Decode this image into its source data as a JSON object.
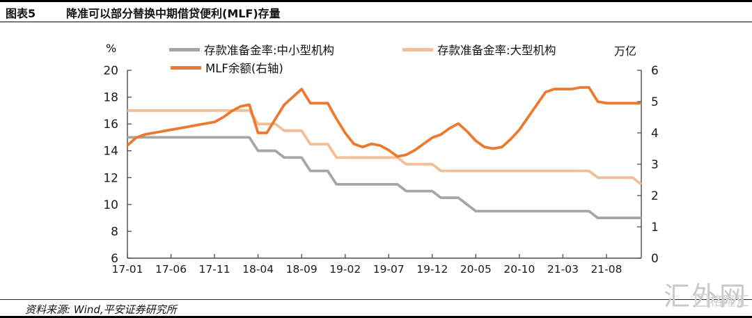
{
  "header": {
    "label": "图表5",
    "title": "降准可以部分替换中期借贷便利(MLF)存量"
  },
  "footer": {
    "source": "资料来源: Wind,平安证券研究所"
  },
  "watermark": {
    "main": "汇外网",
    "sub": "格隆汇"
  },
  "chart_data": {
    "type": "line",
    "x_frequency": "monthly",
    "x_start": "2017-01",
    "x_end": "2021-12",
    "n_points": 60,
    "grid": false,
    "legend_position": "top",
    "axis_color": "#4d4d4d",
    "x_ticks": [
      {
        "month": 0,
        "label": "17-01"
      },
      {
        "month": 5,
        "label": "17-06"
      },
      {
        "month": 10,
        "label": "17-11"
      },
      {
        "month": 15,
        "label": "18-04"
      },
      {
        "month": 20,
        "label": "18-09"
      },
      {
        "month": 25,
        "label": "19-02"
      },
      {
        "month": 30,
        "label": "19-07"
      },
      {
        "month": 35,
        "label": "19-12"
      },
      {
        "month": 40,
        "label": "20-05"
      },
      {
        "month": 45,
        "label": "20-10"
      },
      {
        "month": 50,
        "label": "21-03"
      },
      {
        "month": 55,
        "label": "21-08"
      }
    ],
    "y_left": {
      "unit": "%",
      "min": 6,
      "max": 20,
      "ticks": [
        20,
        18,
        16,
        14,
        12,
        10,
        8,
        6
      ]
    },
    "y_right": {
      "unit": "万亿",
      "min": 0,
      "max": 6,
      "ticks": [
        6,
        5,
        4,
        3,
        2,
        1,
        0
      ]
    },
    "series": [
      {
        "id": "rrr-small-medium",
        "name": "存款准备金率:中小型机构",
        "axis": "left",
        "color": "#A6A6A6",
        "values": [
          15,
          15,
          15,
          15,
          15,
          15,
          15,
          15,
          15,
          15,
          15,
          15,
          15,
          15,
          15,
          14,
          14,
          14,
          13.5,
          13.5,
          13.5,
          12.5,
          12.5,
          12.5,
          11.5,
          11.5,
          11.5,
          11.5,
          11.5,
          11.5,
          11.5,
          11.5,
          11,
          11,
          11,
          11,
          10.5,
          10.5,
          10.5,
          10,
          9.5,
          9.5,
          9.5,
          9.5,
          9.5,
          9.5,
          9.5,
          9.5,
          9.5,
          9.5,
          9.5,
          9.5,
          9.5,
          9.5,
          9,
          9,
          9,
          9,
          9,
          9
        ]
      },
      {
        "id": "rrr-large",
        "name": "存款准备金率:大型机构",
        "axis": "left",
        "color": "#F3BD95",
        "values": [
          17,
          17,
          17,
          17,
          17,
          17,
          17,
          17,
          17,
          17,
          17,
          17,
          17,
          17,
          17,
          16,
          16,
          16,
          15.5,
          15.5,
          15.5,
          14.5,
          14.5,
          14.5,
          13.5,
          13.5,
          13.5,
          13.5,
          13.5,
          13.5,
          13.5,
          13.5,
          13,
          13,
          13,
          13,
          12.5,
          12.5,
          12.5,
          12.5,
          12.5,
          12.5,
          12.5,
          12.5,
          12.5,
          12.5,
          12.5,
          12.5,
          12.5,
          12.5,
          12.5,
          12.5,
          12.5,
          12.5,
          12,
          12,
          12,
          12,
          12,
          11.5
        ]
      },
      {
        "id": "mlf-balance",
        "name": "MLF余额(右轴)",
        "axis": "right",
        "color": "#EC7A2E",
        "values": [
          3.6,
          3.85,
          3.95,
          4.0,
          4.05,
          4.1,
          4.15,
          4.2,
          4.25,
          4.3,
          4.35,
          4.5,
          4.7,
          4.85,
          4.9,
          4.0,
          4.0,
          4.45,
          4.9,
          5.15,
          5.4,
          4.95,
          4.95,
          4.95,
          4.45,
          4.0,
          3.65,
          3.55,
          3.65,
          3.6,
          3.45,
          3.25,
          3.3,
          3.45,
          3.65,
          3.85,
          3.95,
          4.15,
          4.3,
          4.05,
          3.75,
          3.55,
          3.5,
          3.55,
          3.8,
          4.1,
          4.5,
          4.9,
          5.3,
          5.4,
          5.4,
          5.4,
          5.45,
          5.45,
          5.0,
          4.95,
          4.95,
          4.95,
          4.95,
          4.95
        ]
      }
    ]
  }
}
